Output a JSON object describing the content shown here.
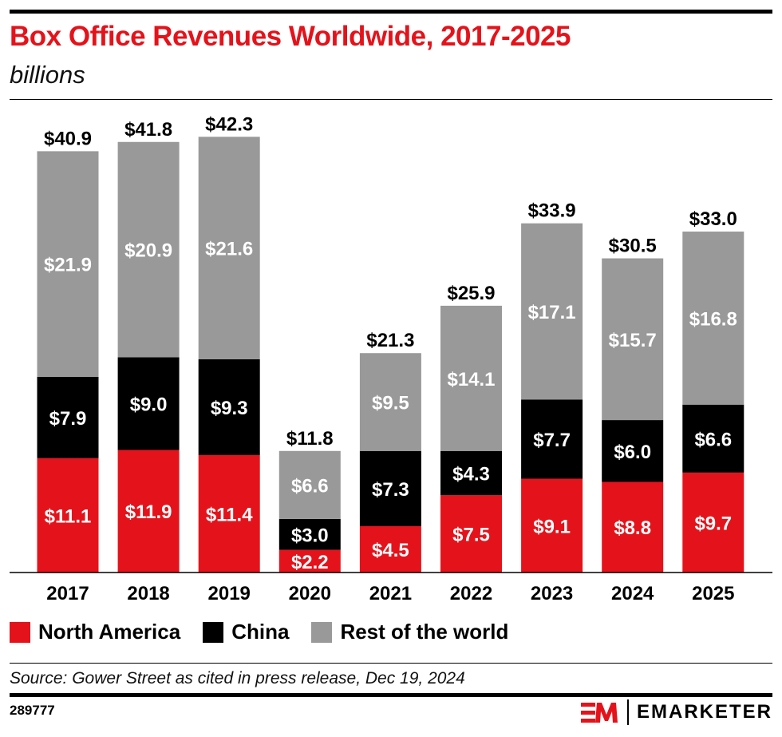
{
  "title": "Box Office Revenues Worldwide, 2017-2025",
  "subtitle": "billions",
  "source": "Source: Gower Street as cited in press release, Dec 19, 2024",
  "chart_id": "289777",
  "brand": "EMARKETER",
  "colors": {
    "north_america": "#e4131b",
    "china": "#000000",
    "rest_of_world": "#999999",
    "title": "#e4131b"
  },
  "chart_data": {
    "type": "bar",
    "stacked": true,
    "title": "Box Office Revenues Worldwide, 2017-2025",
    "subtitle": "billions",
    "categories": [
      "2017",
      "2018",
      "2019",
      "2020",
      "2021",
      "2022",
      "2023",
      "2024",
      "2025"
    ],
    "series": [
      {
        "name": "North America",
        "values": [
          11.1,
          11.9,
          11.4,
          2.2,
          4.5,
          7.5,
          9.1,
          8.8,
          9.7
        ],
        "color": "#e4131b"
      },
      {
        "name": "China",
        "values": [
          7.9,
          9.0,
          9.3,
          3.0,
          7.3,
          4.3,
          7.7,
          6.0,
          6.6
        ],
        "color": "#000000"
      },
      {
        "name": "Rest of the world",
        "values": [
          21.9,
          20.9,
          21.6,
          6.6,
          9.5,
          14.1,
          17.1,
          15.7,
          16.8
        ],
        "color": "#999999"
      }
    ],
    "totals": [
      40.9,
      41.8,
      42.3,
      11.8,
      21.3,
      25.9,
      33.9,
      30.5,
      33.0
    ],
    "value_prefix": "$",
    "legend_position": "bottom-left",
    "grid": false
  }
}
